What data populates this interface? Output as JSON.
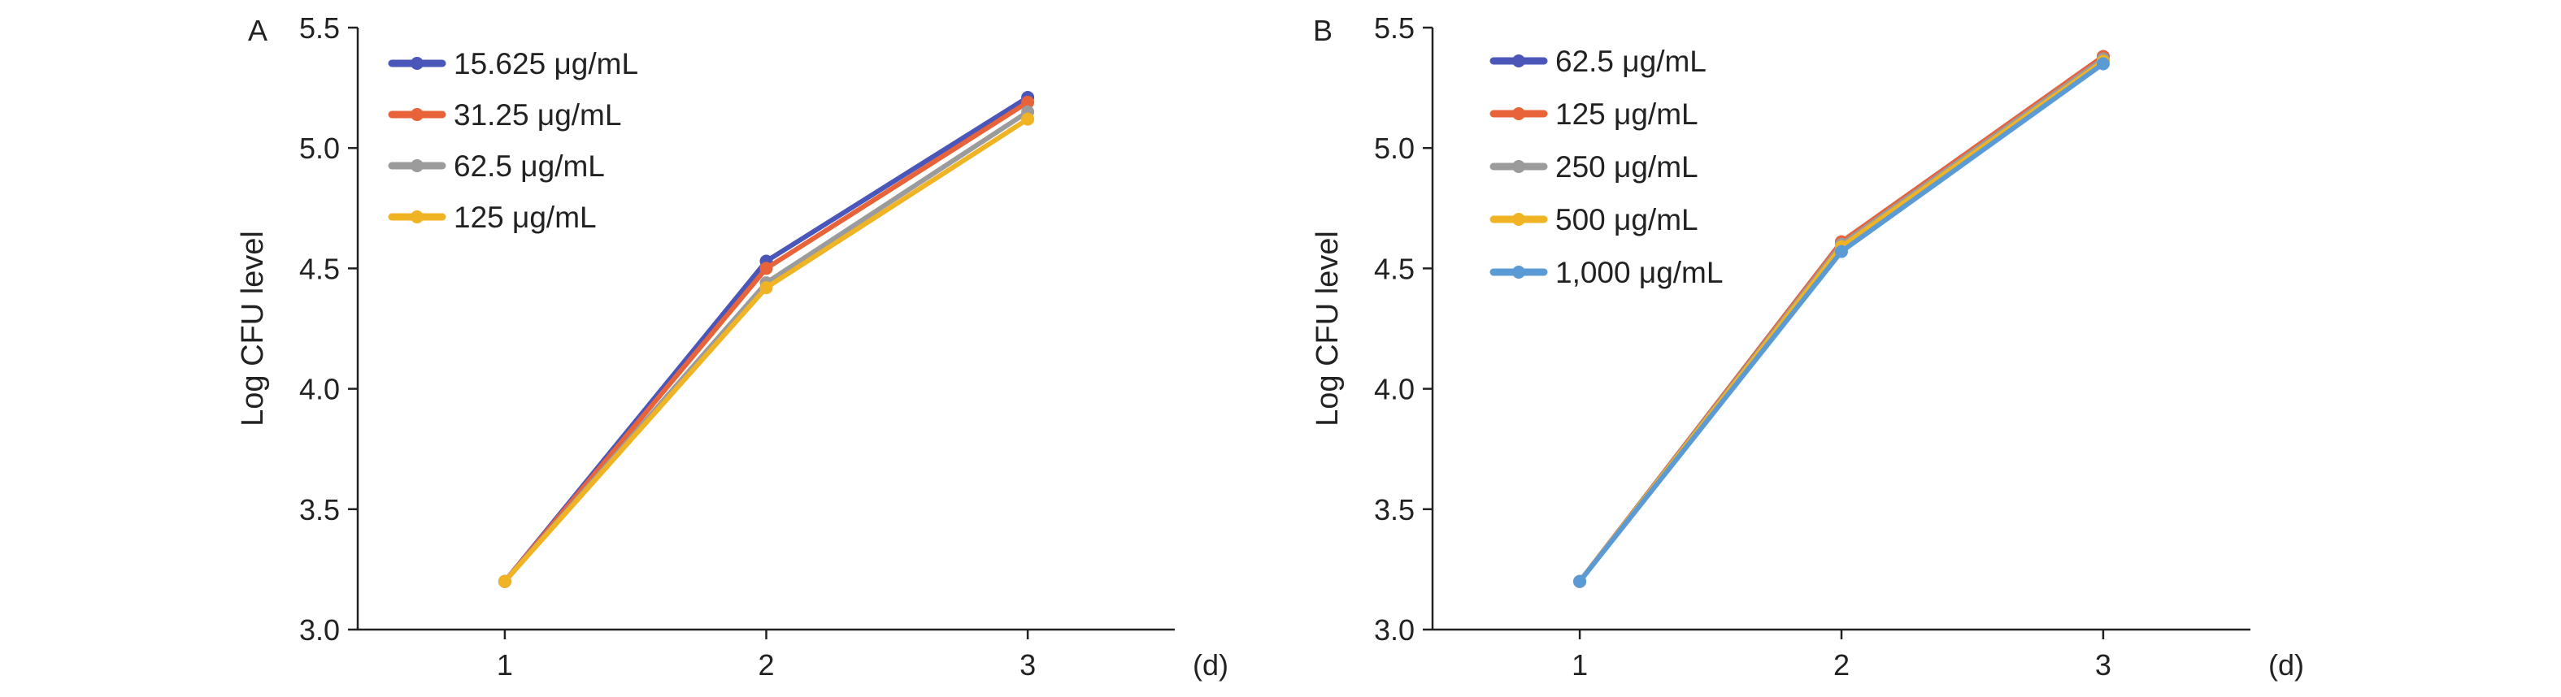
{
  "panels": [
    {
      "panel_label": "A",
      "chart_data": {
        "type": "line",
        "x": [
          1,
          2,
          3
        ],
        "x_tick_labels": [
          "1",
          "2",
          "3"
        ],
        "xlabel": "(d)",
        "ylabel": "Log CFU level",
        "ylim": [
          3.0,
          5.5
        ],
        "y_ticks": [
          "3.0",
          "3.5",
          "4.0",
          "4.5",
          "5.0",
          "5.5"
        ],
        "grid": false,
        "legend_position": "top-left",
        "series": [
          {
            "name": "15.625 μg/mL",
            "color": "#4a56b8",
            "values": [
              3.2,
              4.53,
              5.21
            ]
          },
          {
            "name": "31.25 μg/mL",
            "color": "#e8623a",
            "values": [
              3.2,
              4.5,
              5.19
            ]
          },
          {
            "name": "62.5 μg/mL",
            "color": "#9b9b9b",
            "values": [
              3.2,
              4.44,
              5.15
            ]
          },
          {
            "name": "125 μg/mL",
            "color": "#f0b323",
            "values": [
              3.2,
              4.42,
              5.12
            ]
          }
        ]
      }
    },
    {
      "panel_label": "B",
      "chart_data": {
        "type": "line",
        "x": [
          1,
          2,
          3
        ],
        "x_tick_labels": [
          "1",
          "2",
          "3"
        ],
        "xlabel": "(d)",
        "ylabel": "Log CFU level",
        "ylim": [
          3.0,
          5.5
        ],
        "y_ticks": [
          "3.0",
          "3.5",
          "4.0",
          "4.5",
          "5.0",
          "5.5"
        ],
        "grid": false,
        "legend_position": "top-left",
        "series": [
          {
            "name": "62.5 μg/mL",
            "color": "#4a56b8",
            "values": [
              3.2,
              4.61,
              5.38
            ]
          },
          {
            "name": "125 μg/mL",
            "color": "#e8623a",
            "values": [
              3.2,
              4.61,
              5.38
            ]
          },
          {
            "name": "250 μg/mL",
            "color": "#9b9b9b",
            "values": [
              3.2,
              4.6,
              5.37
            ]
          },
          {
            "name": "500 μg/mL",
            "color": "#f0b323",
            "values": [
              3.2,
              4.59,
              5.36
            ]
          },
          {
            "name": "1,000 μg/mL",
            "color": "#5b9bd5",
            "values": [
              3.2,
              4.57,
              5.35
            ]
          }
        ]
      }
    }
  ]
}
